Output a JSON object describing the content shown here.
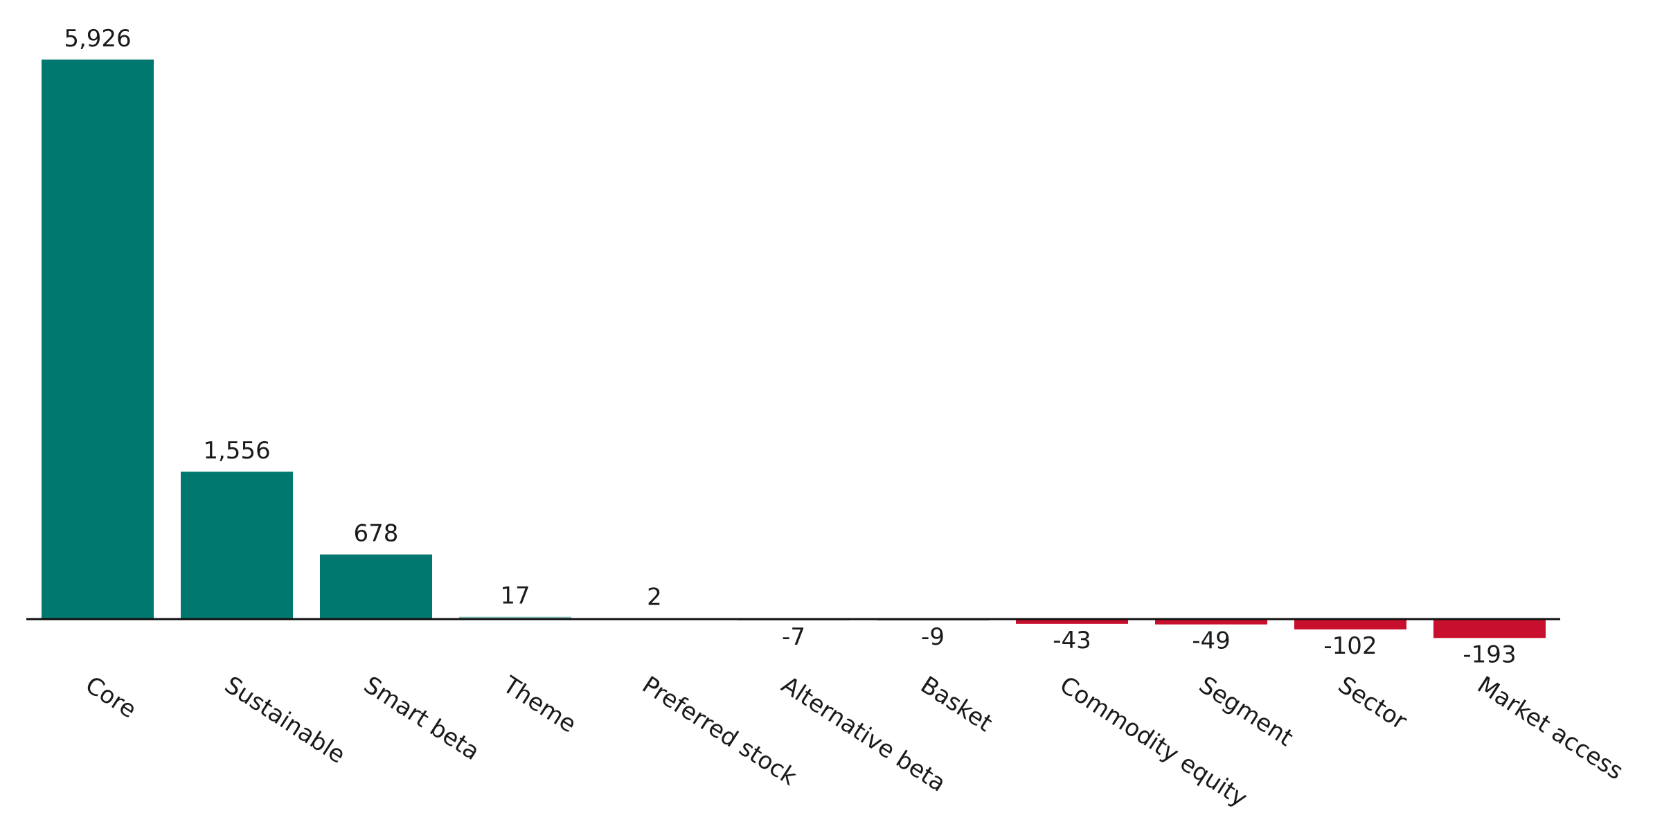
{
  "chart_data": {
    "type": "bar",
    "categories": [
      "Core",
      "Sustainable",
      "Smart beta",
      "Theme",
      "Preferred stock",
      "Alternative beta",
      "Basket",
      "Commodity equity",
      "Segment",
      "Sector",
      "Market access"
    ],
    "values": [
      5926,
      1556,
      678,
      17,
      2,
      -7,
      -9,
      -43,
      -49,
      -102,
      -193
    ],
    "value_labels": [
      "5,926",
      "1,556",
      "678",
      "17",
      "2",
      "-7",
      "-9",
      "-43",
      "-49",
      "-102",
      "-193"
    ],
    "colors": [
      "#00786f",
      "#00786f",
      "#00786f",
      "#7fbcb7",
      "#b0b0b0",
      "#b0b0b0",
      "#b0b0b0",
      "#c8102e",
      "#c8102e",
      "#c8102e",
      "#c8102e"
    ]
  }
}
